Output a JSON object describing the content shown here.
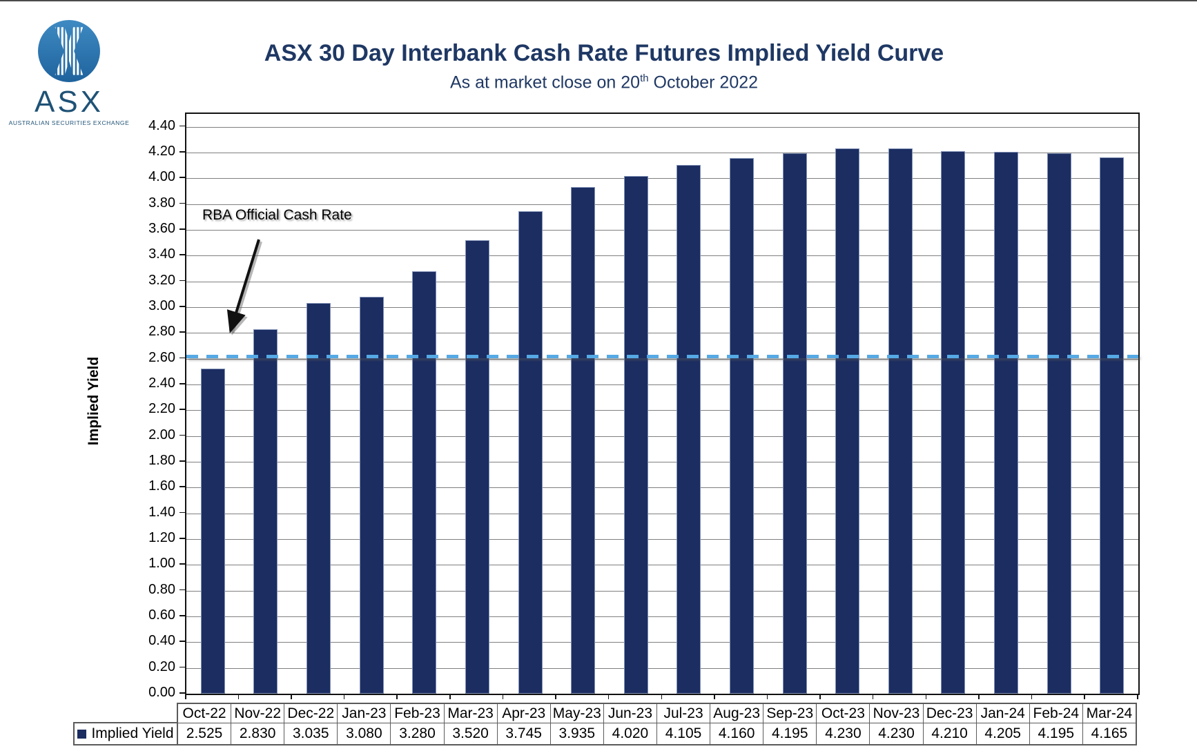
{
  "logo": {
    "brand": "ASX",
    "tagline": "AUSTRALIAN SECURITIES EXCHANGE"
  },
  "header": {
    "title": "ASX 30 Day Interbank Cash Rate Futures Implied Yield Curve",
    "subtitle_prefix": "As at market close on 20",
    "subtitle_sup": "th",
    "subtitle_suffix": " October 2022"
  },
  "colors": {
    "bar": "#1B2D61",
    "reference_line": "#55A9E4",
    "title_navy": "#1F3864",
    "gridline": "#7F7F7F"
  },
  "chart_data": {
    "type": "bar",
    "title": "ASX 30 Day Interbank Cash Rate Futures Implied Yield Curve",
    "subtitle": "As at market close on 20th October 2022",
    "series_name": "Implied Yield",
    "categories": [
      "Oct-22",
      "Nov-22",
      "Dec-22",
      "Jan-23",
      "Feb-23",
      "Mar-23",
      "Apr-23",
      "May-23",
      "Jun-23",
      "Jul-23",
      "Aug-23",
      "Sep-23",
      "Oct-23",
      "Nov-23",
      "Dec-23",
      "Jan-24",
      "Feb-24",
      "Mar-24"
    ],
    "values": [
      2.525,
      2.83,
      3.035,
      3.08,
      3.28,
      3.52,
      3.745,
      3.935,
      4.02,
      4.105,
      4.16,
      4.195,
      4.23,
      4.23,
      4.21,
      4.205,
      4.195,
      4.165
    ],
    "xlabel": "",
    "ylabel": "Implied Yield",
    "ylim": [
      0,
      4.5
    ],
    "ytick_interval": 0.2,
    "ytick_label_min": "0.00",
    "ytick_label_max": "4.40",
    "grid": true,
    "legend_position": "bottom-left",
    "reference_line": {
      "label": "RBA Official Cash Rate",
      "value": 2.6,
      "style": "dashed",
      "color": "#55A9E4"
    }
  },
  "table": {
    "legend_label": "Implied Yield",
    "columns": [
      "Oct-22",
      "Nov-22",
      "Dec-22",
      "Jan-23",
      "Feb-23",
      "Mar-23",
      "Apr-23",
      "May-23",
      "Jun-23",
      "Jul-23",
      "Aug-23",
      "Sep-23",
      "Oct-23",
      "Nov-23",
      "Dec-23",
      "Jan-24",
      "Feb-24",
      "Mar-24"
    ],
    "values_display": [
      "2.525",
      "2.830",
      "3.035",
      "3.080",
      "3.280",
      "3.520",
      "3.745",
      "3.935",
      "4.020",
      "4.105",
      "4.160",
      "4.195",
      "4.230",
      "4.230",
      "4.210",
      "4.205",
      "4.195",
      "4.165"
    ]
  }
}
